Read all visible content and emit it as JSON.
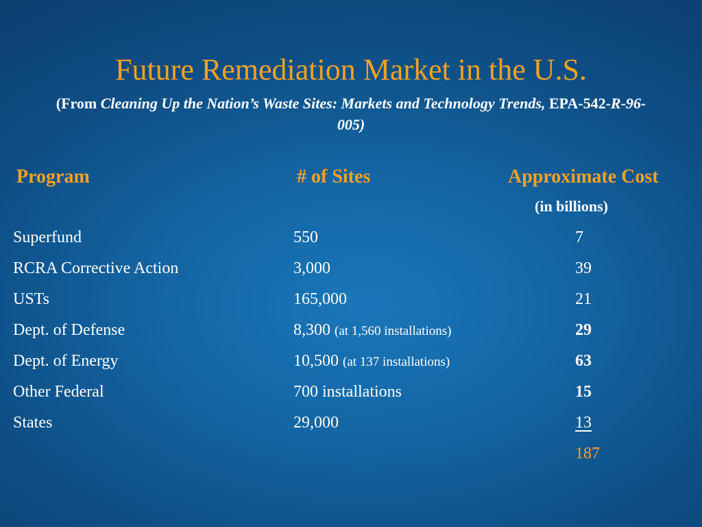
{
  "slide": {
    "title": "Future Remediation Market in the U.S.",
    "subtitle": {
      "from_open": "(From ",
      "source_title": "Cleaning Up the Nation’s Waste Sites:  Markets and Technology Trends,",
      "epa_prefix": "  EPA-542-",
      "epa_suffix": "R-96-005)"
    }
  },
  "table": {
    "headers": {
      "program": "Program",
      "sites": "# of Sites",
      "cost": "Approximate Cost",
      "cost_unit": "(in billions)"
    },
    "rows": [
      {
        "program": "Superfund",
        "sites": "550",
        "note": "",
        "cost": "7"
      },
      {
        "program": "RCRA Corrective Action",
        "sites": "3,000",
        "note": "",
        "cost": "39"
      },
      {
        "program": "USTs",
        "sites": "165,000",
        "note": "",
        "cost": "21"
      },
      {
        "program": "Dept. of Defense",
        "sites": "8,300",
        "note": "(at 1,560 installations)",
        "cost": "29"
      },
      {
        "program": "Dept. of Energy",
        "sites": "10,500",
        "note": "(at 137 installations)",
        "cost": "63"
      },
      {
        "program": "Other Federal",
        "sites": "700 installations",
        "note": "",
        "cost": "15"
      },
      {
        "program": "States",
        "sites": "29,000",
        "note": "",
        "cost": "13"
      }
    ],
    "total": "187"
  },
  "colors": {
    "accent": "#f5a122",
    "text": "#ffffff",
    "background": "#1466a4"
  }
}
